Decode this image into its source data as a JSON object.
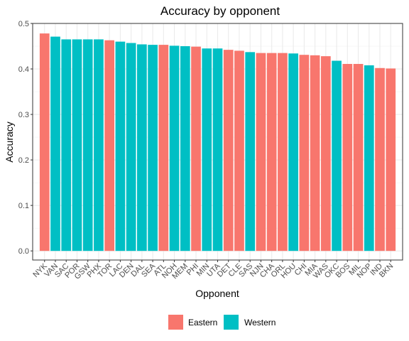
{
  "chart_data": {
    "type": "bar",
    "title": "Accuracy by opponent",
    "xlabel": "Opponent",
    "ylabel": "Accuracy",
    "ylim": [
      -0.02,
      0.5
    ],
    "yticks": [
      0.0,
      0.1,
      0.2,
      0.3,
      0.4,
      0.5
    ],
    "ytick_labels": [
      "0.0",
      "0.1",
      "0.2",
      "0.3",
      "0.4",
      "0.5"
    ],
    "grid": true,
    "legend_position": "bottom",
    "legend": [
      {
        "name": "Eastern",
        "color": "#F8766D"
      },
      {
        "name": "Western",
        "color": "#00BFC4"
      }
    ],
    "categories": [
      "NYK",
      "VAN",
      "SAC",
      "POR",
      "GSW",
      "PHX",
      "TOR",
      "LAC",
      "DEN",
      "DAL",
      "SEA",
      "ATL",
      "NOH",
      "MEM",
      "PHI",
      "MIN",
      "UTA",
      "DET",
      "CLE",
      "SAS",
      "NJN",
      "CHA",
      "ORL",
      "HOU",
      "CHI",
      "MIA",
      "WAS",
      "OKC",
      "BOS",
      "MIL",
      "NOP",
      "IND",
      "BKN"
    ],
    "values": [
      0.478,
      0.471,
      0.465,
      0.465,
      0.465,
      0.465,
      0.463,
      0.46,
      0.457,
      0.454,
      0.453,
      0.453,
      0.451,
      0.45,
      0.449,
      0.445,
      0.445,
      0.442,
      0.44,
      0.437,
      0.435,
      0.435,
      0.435,
      0.434,
      0.431,
      0.43,
      0.428,
      0.418,
      0.411,
      0.411,
      0.408,
      0.402,
      0.401
    ],
    "groups": [
      "Eastern",
      "Western",
      "Western",
      "Western",
      "Western",
      "Western",
      "Eastern",
      "Western",
      "Western",
      "Western",
      "Western",
      "Eastern",
      "Western",
      "Western",
      "Eastern",
      "Western",
      "Western",
      "Eastern",
      "Eastern",
      "Western",
      "Eastern",
      "Eastern",
      "Eastern",
      "Western",
      "Eastern",
      "Eastern",
      "Eastern",
      "Western",
      "Eastern",
      "Eastern",
      "Western",
      "Eastern",
      "Eastern"
    ]
  }
}
